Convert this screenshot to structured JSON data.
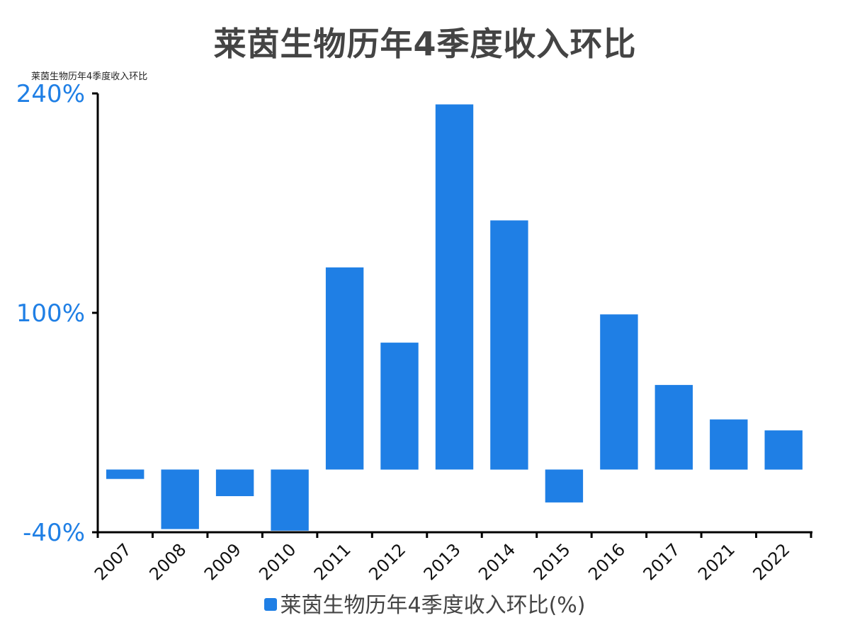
{
  "chart_data": {
    "type": "bar",
    "title": "莱茵生物历年4季度收入环比",
    "subtitle": "莱茵生物历年4季度收入环比",
    "categories": [
      "2007",
      "2008",
      "2009",
      "2010",
      "2011",
      "2012",
      "2013",
      "2014",
      "2015",
      "2016",
      "2017",
      "2021",
      "2022"
    ],
    "series": [
      {
        "name": "莱茵生物历年4季度收入环比(%)",
        "values": [
          -6,
          -38,
          -17,
          -39,
          129,
          81,
          233,
          159,
          -21,
          99,
          54,
          32,
          25
        ]
      }
    ],
    "ylim": [
      -40,
      240
    ],
    "yticks": [
      "240%",
      "100%",
      "-40%"
    ],
    "ytick_values": [
      240,
      100,
      -40
    ],
    "xlabel": "",
    "ylabel": "",
    "legend_position": "bottom",
    "grid": false,
    "colors": {
      "bar": "#1f7fe5",
      "tick_label": "#1f7fe5",
      "axis": "#000000",
      "title": "#444444"
    }
  }
}
